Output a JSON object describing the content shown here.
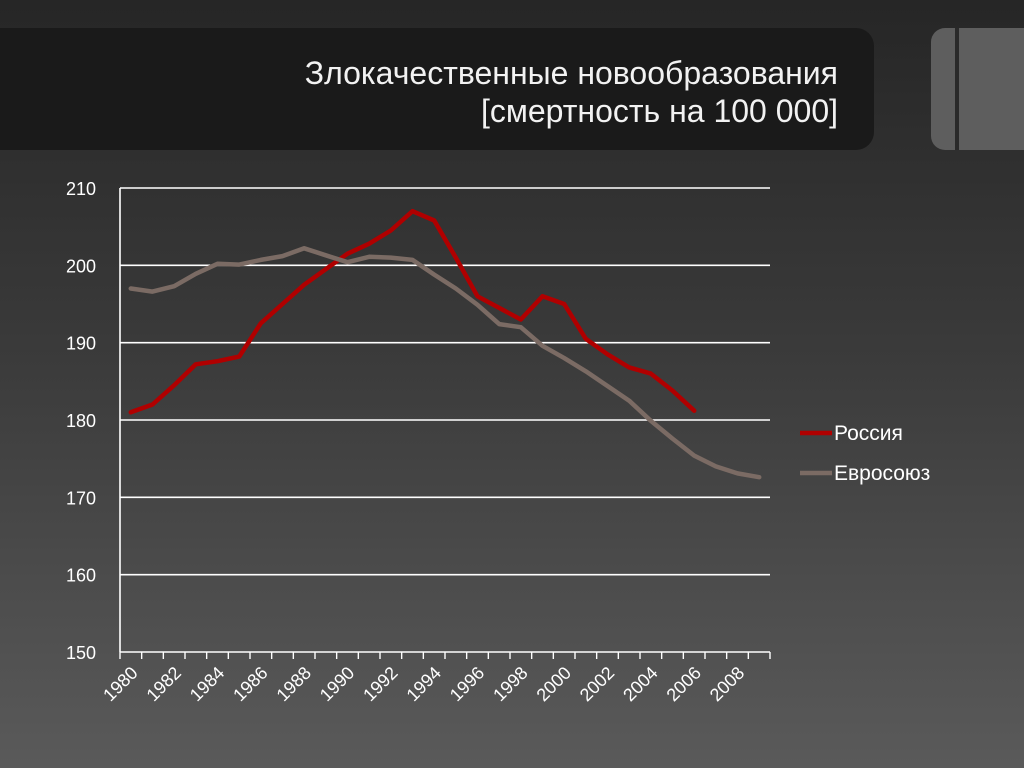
{
  "slide": {
    "title_line1": "Злокачественные новообразования",
    "title_line2": "[смертность на 100 000]"
  },
  "colors": {
    "russia": "#b00000",
    "eu": "#7b6b64",
    "grid": "#ffffff",
    "text": "#ffffff"
  },
  "chart_data": {
    "type": "line",
    "title": "",
    "xlabel": "",
    "ylabel": "",
    "x": [
      1980,
      1981,
      1982,
      1983,
      1984,
      1985,
      1986,
      1987,
      1988,
      1989,
      1990,
      1991,
      1992,
      1993,
      1994,
      1995,
      1996,
      1997,
      1998,
      1999,
      2000,
      2001,
      2002,
      2003,
      2004,
      2005,
      2006,
      2007,
      2008,
      2009
    ],
    "x_tick_labels": [
      "1980",
      "1982",
      "1984",
      "1986",
      "1988",
      "1990",
      "1992",
      "1994",
      "1996",
      "1998",
      "2000",
      "2002",
      "2004",
      "2006",
      "2008"
    ],
    "ylim": [
      150,
      210
    ],
    "y_ticks": [
      150,
      160,
      170,
      180,
      190,
      200,
      210
    ],
    "grid": true,
    "legend_position": "right",
    "series": [
      {
        "name": "Россия",
        "color": "#b00000",
        "values": [
          181,
          182,
          184.5,
          187.2,
          187.6,
          188.2,
          192.5,
          195,
          197.5,
          199.5,
          201.5,
          202.8,
          204.5,
          207,
          205.8,
          201,
          196,
          194.5,
          193,
          196,
          195,
          190.5,
          188.5,
          186.8,
          186,
          183.8,
          181.2,
          null,
          null,
          null
        ]
      },
      {
        "name": "Евросоюз",
        "color": "#7b6b64",
        "values": [
          197,
          196.6,
          197.3,
          198.9,
          200.2,
          200.1,
          200.7,
          201.2,
          202.2,
          201.3,
          200.4,
          201.1,
          201,
          200.7,
          198.8,
          197,
          194.9,
          192.4,
          192,
          189.6,
          188,
          186.3,
          184.4,
          182.5,
          179.9,
          177.6,
          175.4,
          174,
          173.1,
          172.6
        ]
      }
    ]
  }
}
